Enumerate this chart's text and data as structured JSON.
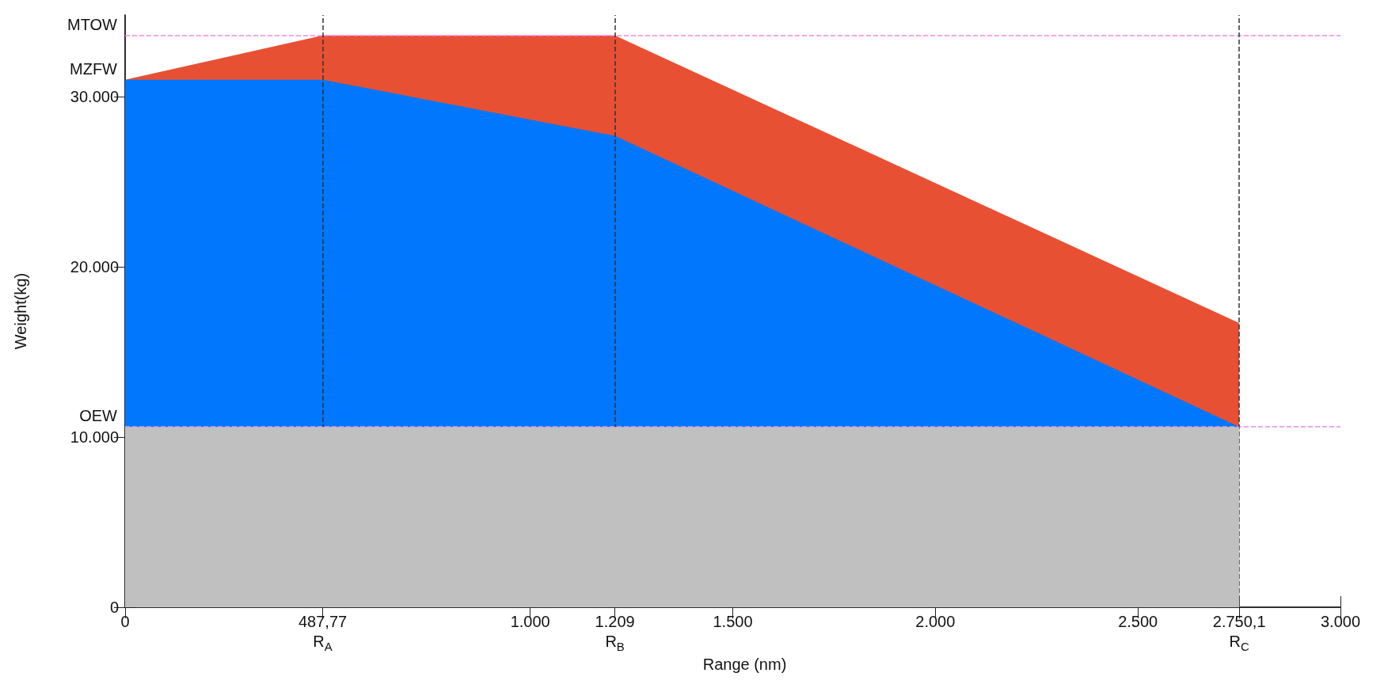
{
  "chart_data": {
    "type": "area",
    "stacked": true,
    "xlabel": "Range (nm)",
    "ylabel": "Weight(kg)",
    "x": [
      0,
      487.77,
      1209,
      2750.1
    ],
    "series": [
      {
        "color": "#c0c0c0",
        "values": [
          10600,
          10600,
          10600,
          10600
        ]
      },
      {
        "color": "#0077fc",
        "values": [
          20400,
          20400,
          17100,
          0
        ]
      },
      {
        "color": "#e85034",
        "values": [
          0,
          2600,
          5900,
          6100
        ]
      }
    ],
    "xlim": [
      0,
      3000
    ],
    "ylim": [
      0,
      34800
    ],
    "xticks": [
      0,
      {
        "value": 487.77,
        "label": "487,77\nR$_{A}$"
      },
      {
        "value": 1000,
        "label": "1.000"
      },
      {
        "value": 1209,
        "label": "1.209\nR$_{B}$"
      },
      {
        "value": 1500,
        "label": "1.500"
      },
      {
        "value": 2000,
        "label": "2.000"
      },
      {
        "value": 2500,
        "label": "2.500"
      },
      {
        "value": 2750.1,
        "label": "2.750,1\nR$_{C}$"
      },
      {
        "value": 3000,
        "label": "3.000"
      }
    ],
    "yticks": [
      0,
      {
        "value": 10000,
        "label": "10.000"
      },
      {
        "value": 20000,
        "label": "20.000"
      },
      {
        "value": 30000,
        "label": "30.000"
      }
    ],
    "ref_lines": [
      {
        "axis": "y",
        "value": 33600,
        "label": "MTOW",
        "color": "#ee88ee",
        "line_style": "dashed"
      },
      {
        "axis": "y",
        "value": 10600,
        "label": "OEW",
        "color": "#ee88ee",
        "line_style": "dashed"
      },
      {
        "axis": "x",
        "value": 487.77,
        "label": null,
        "color": "#333333",
        "line_style": "dashed"
      },
      {
        "axis": "x",
        "value": 1209,
        "label": null,
        "color": "#333333",
        "line_style": "dashed"
      },
      {
        "axis": "x",
        "value": 2750.1,
        "label": null,
        "color": "#333333",
        "line_style": "dashed"
      }
    ],
    "annotations": [
      {
        "text": "MZFW",
        "x": 0,
        "y": 31000
      }
    ],
    "grid": false,
    "marker": "none"
  }
}
